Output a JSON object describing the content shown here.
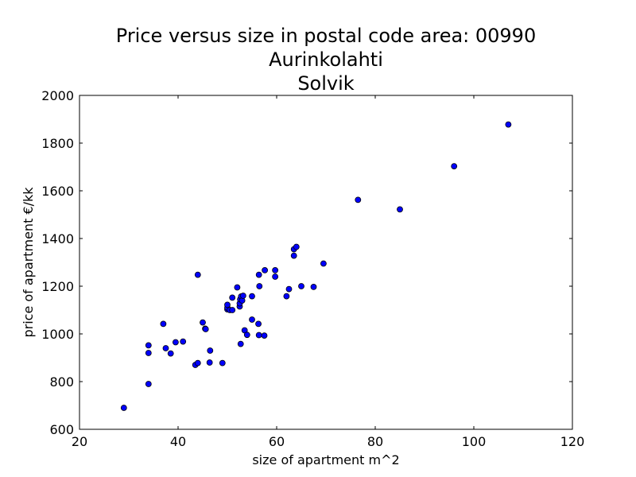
{
  "chart_data": {
    "type": "scatter",
    "title": [
      "Price versus size in postal code area: 00990",
      "Aurinkolahti",
      "Solvik"
    ],
    "xlabel": "size of apartment m^2",
    "ylabel": "price of apartment €/kk",
    "xlim": [
      20,
      120
    ],
    "ylim": [
      600,
      2000
    ],
    "xticks": [
      20,
      40,
      60,
      80,
      100,
      120
    ],
    "yticks": [
      600,
      800,
      1000,
      1200,
      1400,
      1600,
      1800,
      2000
    ],
    "grid": false,
    "legend": "none",
    "marker_color": "#0000ff",
    "points": [
      [
        29,
        690
      ],
      [
        34,
        790
      ],
      [
        34,
        920
      ],
      [
        34,
        952
      ],
      [
        37,
        1042
      ],
      [
        37.5,
        940
      ],
      [
        38.5,
        918
      ],
      [
        39.5,
        965
      ],
      [
        41,
        968
      ],
      [
        43.5,
        870
      ],
      [
        44,
        878
      ],
      [
        44,
        1248
      ],
      [
        45,
        1048
      ],
      [
        45.5,
        1022
      ],
      [
        45.6,
        1020
      ],
      [
        46.4,
        880
      ],
      [
        46.5,
        930
      ],
      [
        49,
        878
      ],
      [
        50,
        1103
      ],
      [
        50,
        1110
      ],
      [
        50,
        1122
      ],
      [
        50.5,
        1100
      ],
      [
        51,
        1100
      ],
      [
        51,
        1152
      ],
      [
        52,
        1195
      ],
      [
        52.5,
        1115
      ],
      [
        52.5,
        1128
      ],
      [
        52.6,
        1145
      ],
      [
        52.7,
        958
      ],
      [
        52.8,
        1157
      ],
      [
        53,
        1140
      ],
      [
        53.2,
        1160
      ],
      [
        53.5,
        1015
      ],
      [
        54,
        996
      ],
      [
        55,
        1060
      ],
      [
        55,
        1158
      ],
      [
        56.3,
        1042
      ],
      [
        56.4,
        995
      ],
      [
        56.4,
        1248
      ],
      [
        56.5,
        1200
      ],
      [
        57.5,
        993
      ],
      [
        57.6,
        1267
      ],
      [
        59.7,
        1240
      ],
      [
        59.7,
        1267
      ],
      [
        62,
        1158
      ],
      [
        62.5,
        1188
      ],
      [
        63.5,
        1328
      ],
      [
        63.5,
        1355
      ],
      [
        64,
        1365
      ],
      [
        65,
        1200
      ],
      [
        67.5,
        1197
      ],
      [
        69.5,
        1295
      ],
      [
        76.5,
        1562
      ],
      [
        85,
        1522
      ],
      [
        96,
        1703
      ],
      [
        107,
        1878
      ]
    ]
  }
}
